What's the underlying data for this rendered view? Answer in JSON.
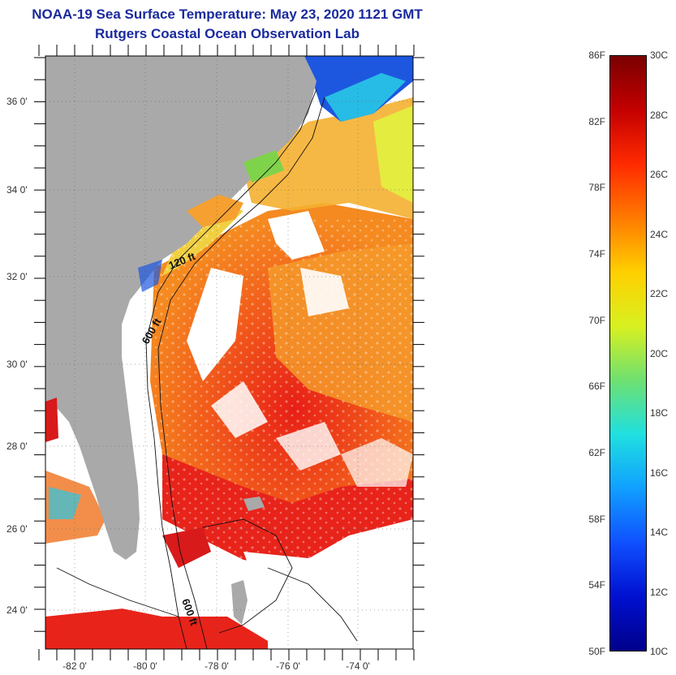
{
  "title": {
    "line1": "NOAA-19 Sea Surface Temperature:  May 23, 2020 1121 GMT",
    "line2": "Rutgers Coastal Ocean Observation Lab"
  },
  "map": {
    "lat_ticks": [
      "36 0'",
      "34 0'",
      "32 0'",
      "30 0'",
      "28 0'",
      "26 0'",
      "24 0'"
    ],
    "lon_ticks": [
      "-82 0'",
      "-80 0'",
      "-78 0'",
      "-76 0'",
      "-74 0'"
    ],
    "contour_labels": {
      "c120": "120 ft",
      "c600a": "600 ft",
      "c600b": "600 ft"
    },
    "colors": {
      "land": "#a9a9a9",
      "cloud": "#ffffff",
      "warm": "#e8231a",
      "orange": "#f57a1e",
      "yellow": "#f5e42a",
      "green": "#7fd34a",
      "cyan": "#29c8e6",
      "blue": "#1d57e0"
    }
  },
  "colorbar": {
    "fahrenheit": [
      "86F",
      "82F",
      "78F",
      "74F",
      "70F",
      "66F",
      "62F",
      "58F",
      "54F",
      "50F"
    ],
    "celsius": [
      "30C",
      "28C",
      "26C",
      "24C",
      "22C",
      "20C",
      "18C",
      "16C",
      "14C",
      "12C",
      "10C"
    ],
    "colors": [
      "#7a0000",
      "#c40000",
      "#ff2a00",
      "#ff7a00",
      "#ffd000",
      "#d8f020",
      "#6fe070",
      "#20e0e0",
      "#10a0ff",
      "#1050ff",
      "#0010d0",
      "#00008a"
    ]
  }
}
